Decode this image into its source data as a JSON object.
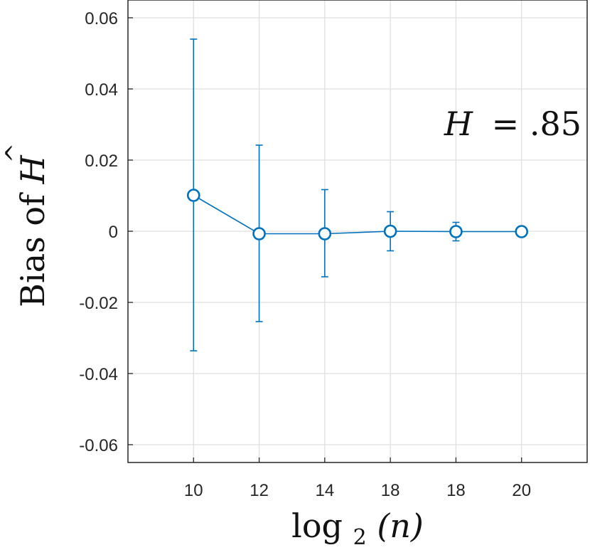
{
  "chart_data": {
    "type": "line",
    "title": "",
    "xlabel": {
      "main": "log",
      "sub": "2",
      "arg": "(n)"
    },
    "ylabel": {
      "prefix": "Bias of ",
      "symbol": "H",
      "hat": "^"
    },
    "annotation": {
      "lhs": "H",
      "rhs": "= .85"
    },
    "categories": [
      "10",
      "12",
      "14",
      "18",
      "18",
      "20"
    ],
    "xlim": [
      0,
      7
    ],
    "ylim": [
      -0.065,
      0.065
    ],
    "yticks": [
      -0.06,
      -0.04,
      -0.02,
      0,
      0.02,
      0.04,
      0.06
    ],
    "ytick_labels": [
      "-0.06",
      "-0.04",
      "-0.02",
      "0",
      "0.02",
      "0.04",
      "0.06"
    ],
    "grid": true,
    "series": [
      {
        "name": "bias",
        "color": "#0072BD",
        "marker": "circle",
        "values": [
          0.0101,
          -0.0007,
          -0.0007,
          0.0,
          -0.0001,
          -0.0001
        ],
        "upper": [
          0.054,
          0.0242,
          0.0117,
          0.0055,
          0.0025,
          0.0008
        ],
        "lower": [
          -0.0336,
          -0.0254,
          -0.0128,
          -0.0055,
          -0.0027,
          -0.0009
        ]
      }
    ]
  }
}
